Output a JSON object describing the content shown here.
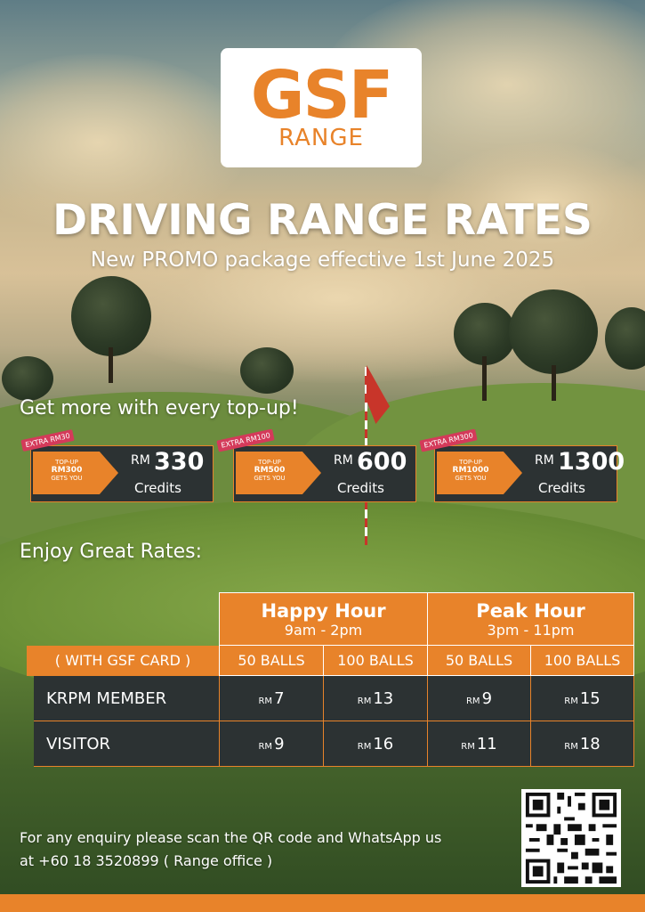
{
  "logo": {
    "main": "GSF",
    "sub": "RANGE"
  },
  "title": "DRIVING RANGE RATES",
  "subtitle": "New PROMO package effective 1st June 2025",
  "topup_heading": "Get more with every top-up!",
  "promos": [
    {
      "tag": "EXTRA RM30",
      "line1": "TOP-UP",
      "line2": "RM300",
      "line3": "GETS YOU",
      "currency": "RM",
      "amount": "330",
      "credits": "Credits"
    },
    {
      "tag": "EXTRA RM100",
      "line1": "TOP-UP",
      "line2": "RM500",
      "line3": "GETS YOU",
      "currency": "RM",
      "amount": "600",
      "credits": "Credits"
    },
    {
      "tag": "EXTRA RM300",
      "line1": "TOP-UP",
      "line2": "RM1000",
      "line3": "GETS YOU",
      "currency": "RM",
      "amount": "1300",
      "credits": "Credits"
    }
  ],
  "rates_heading": "Enjoy Great Rates:",
  "table": {
    "happy": {
      "name": "Happy Hour",
      "time": "9am - 2pm"
    },
    "peak": {
      "name": "Peak Hour",
      "time": "3pm - 11pm"
    },
    "card_label": "( WITH GSF CARD )",
    "cols": [
      "50 BALLS",
      "100 BALLS",
      "50 BALLS",
      "100 BALLS"
    ],
    "currency": "RM",
    "rows": [
      {
        "label": "KRPM MEMBER",
        "values": [
          "7",
          "13",
          "9",
          "15"
        ]
      },
      {
        "label": "VISITOR",
        "values": [
          "9",
          "16",
          "11",
          "18"
        ]
      }
    ]
  },
  "enquiry": {
    "line1": "For any enquiry please scan the QR code and WhatsApp us",
    "line2": "at +60 18 3520899 ( Range office )"
  },
  "colors": {
    "accent": "#e8832a",
    "panel": "#2c3233",
    "tag": "#d43a5a"
  }
}
